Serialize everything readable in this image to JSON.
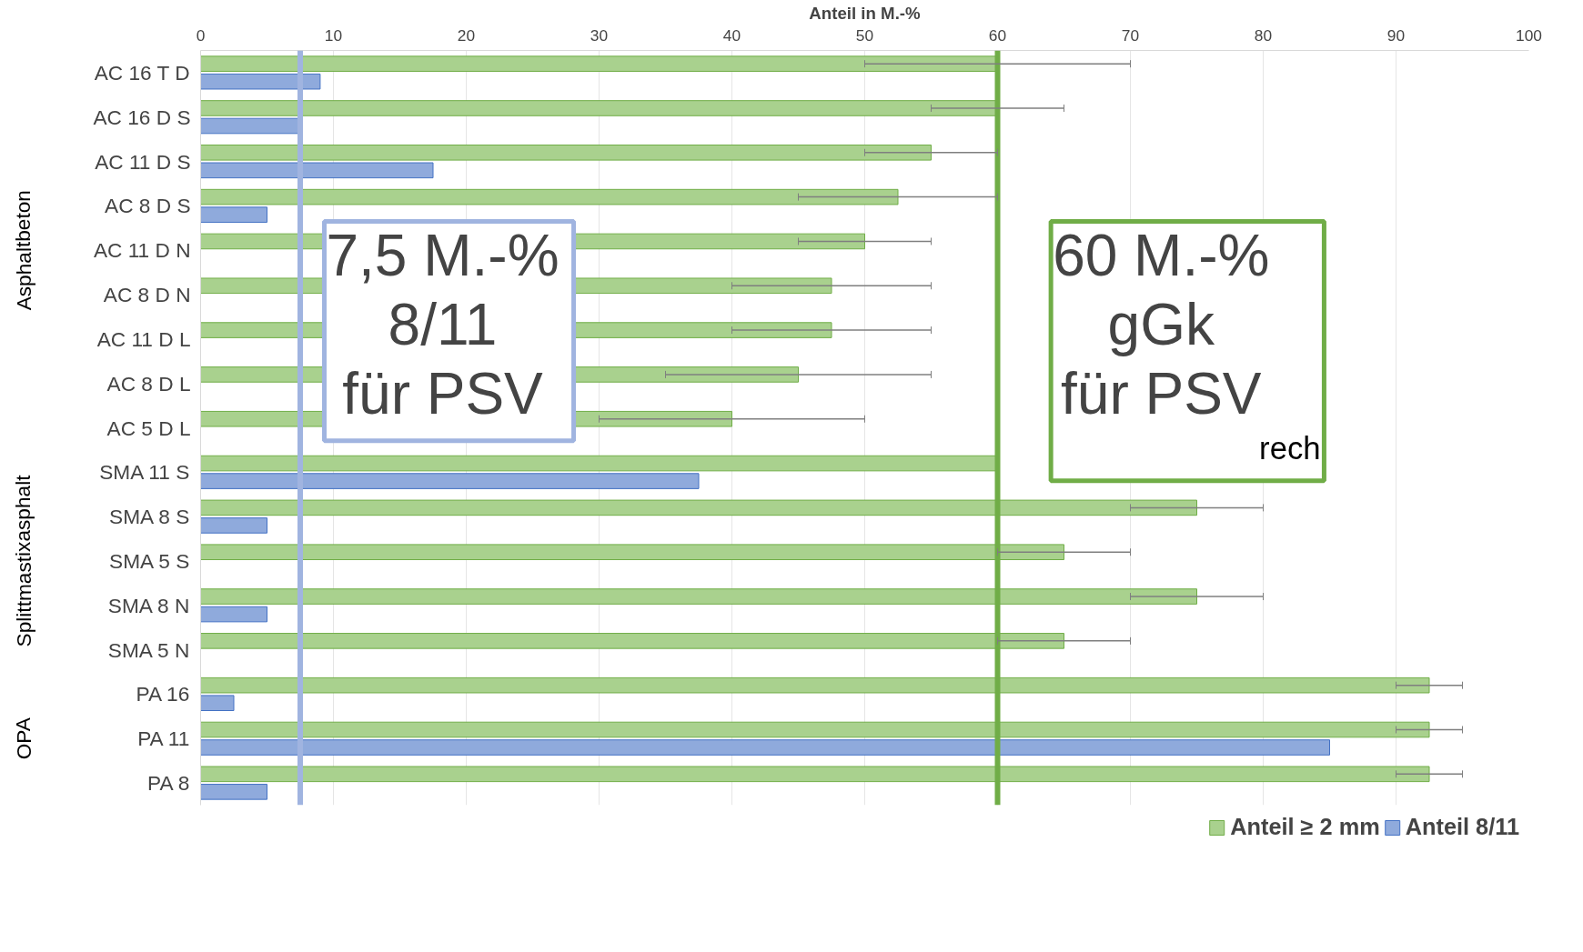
{
  "chart_data": {
    "type": "bar",
    "orientation": "horizontal",
    "xlabel": "Anteil in M.-%",
    "categories": [
      "AC 16 T D",
      "AC 16 D S",
      "AC 11 D S",
      "AC 8 D S",
      "AC 11 D N",
      "AC 8 D N",
      "AC 11 D L",
      "AC 8 D L",
      "AC 5 D L",
      "SMA 11 S",
      "SMA 8 S",
      "SMA 5 S",
      "SMA 8 N",
      "SMA 5 N",
      "PA 16",
      "PA 11",
      "PA 8"
    ],
    "series": [
      {
        "name": "Anteil ≥ 2 mm",
        "color": "#a9d18e",
        "values": [
          60,
          60,
          55,
          52.5,
          50,
          47.5,
          47.5,
          45,
          40,
          60,
          75,
          65,
          75,
          65,
          92.5,
          92.5,
          92.5
        ],
        "errors": [
          10,
          5,
          [
            50,
            60
          ],
          [
            45,
            60
          ],
          [
            45,
            55
          ],
          [
            40,
            55
          ],
          [
            40,
            55
          ],
          [
            35,
            55
          ],
          [
            30,
            50
          ],
          null,
          [
            70,
            80
          ],
          [
            60,
            70
          ],
          [
            70,
            80
          ],
          [
            60,
            70
          ],
          [
            90,
            95
          ],
          [
            90,
            95
          ],
          [
            90,
            95
          ]
        ]
      },
      {
        "name": "Anteil 8/11",
        "color": "#8faadc",
        "values": [
          9,
          7.5,
          17.5,
          5,
          null,
          null,
          null,
          null,
          null,
          37.5,
          5,
          null,
          5,
          null,
          2.5,
          85,
          5
        ]
      }
    ],
    "xlim": [
      0,
      100
    ],
    "xticks": [
      0,
      10,
      20,
      30,
      40,
      50,
      60,
      70,
      80,
      90,
      100
    ],
    "grid": "x",
    "legend": "bottom",
    "ref_lines": [
      {
        "axis": "x",
        "value": 7.5,
        "color": "#a0b4e0"
      },
      {
        "axis": "x",
        "value": 60,
        "color": "#70ad47"
      }
    ],
    "annotations": [
      "7,5 M.-%\n8/11\nfür PSV",
      "60 M.-%\ngGk\nfür PSV$_{rech}$",
      "Asphaltbeton",
      "Splittmastixasphalt",
      "OPA"
    ]
  }
}
